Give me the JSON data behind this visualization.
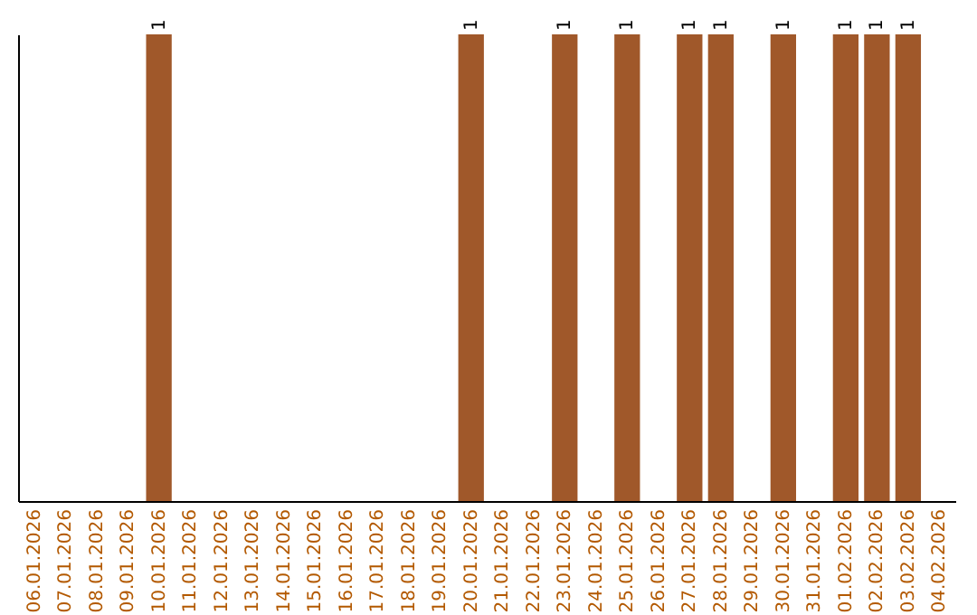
{
  "chart_data": {
    "type": "bar",
    "ylim": [
      0,
      1
    ],
    "color": "#a0582a",
    "categories": [
      "06.01.2026",
      "07.01.2026",
      "08.01.2026",
      "09.01.2026",
      "10.01.2026",
      "11.01.2026",
      "12.01.2026",
      "13.01.2026",
      "14.01.2026",
      "15.01.2026",
      "16.01.2026",
      "17.01.2026",
      "18.01.2026",
      "19.01.2026",
      "20.01.2026",
      "21.01.2026",
      "22.01.2026",
      "23.01.2026",
      "24.01.2026",
      "25.01.2026",
      "26.01.2026",
      "27.01.2026",
      "28.01.2026",
      "29.01.2026",
      "30.01.2026",
      "31.01.2026",
      "01.02.2026",
      "02.02.2026",
      "03.02.2026",
      "04.02.2026"
    ],
    "values": [
      0,
      0,
      0,
      0,
      1,
      0,
      0,
      0,
      0,
      0,
      0,
      0,
      0,
      0,
      1,
      0,
      0,
      1,
      0,
      1,
      0,
      1,
      1,
      0,
      1,
      0,
      1,
      1,
      1,
      0
    ],
    "value_labels": [
      null,
      null,
      null,
      null,
      "1",
      null,
      null,
      null,
      null,
      null,
      null,
      null,
      null,
      null,
      "1",
      null,
      null,
      "1",
      null,
      "1",
      null,
      "1",
      "1",
      null,
      "1",
      null,
      "1",
      "1",
      "1",
      null
    ],
    "tick_labels": "x"
  }
}
